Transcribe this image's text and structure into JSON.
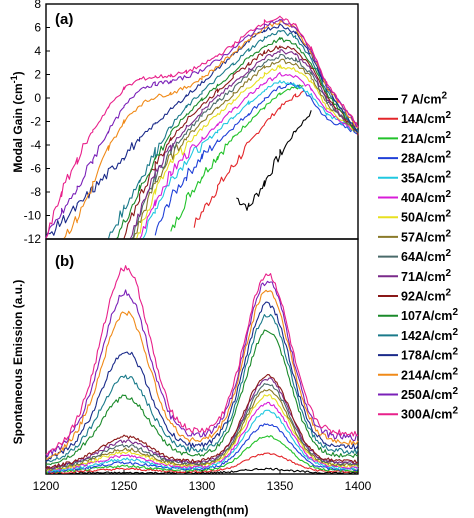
{
  "chart_data": [
    {
      "type": "line",
      "panel_tag": "(a)",
      "ylabel": "Modal Gain (cm",
      "ylabel_sup": "-1",
      "ylabel_end": ")",
      "xlabel": "",
      "xlim": [
        1200,
        1400
      ],
      "ylim": [
        -12,
        8
      ],
      "yticks": [
        -12,
        -10,
        -8,
        -6,
        -4,
        -2,
        0,
        2,
        4,
        6,
        8
      ],
      "legend": "right, outside plot",
      "series": [
        {
          "name": "7 A/cm2",
          "color": "#000000",
          "x": [
            1322,
            1330,
            1340,
            1350,
            1360,
            1370
          ],
          "y": [
            -8.5,
            -9.3,
            -7.2,
            -4.8,
            -2.8,
            -1.2
          ]
        },
        {
          "name": "14A/cm2",
          "color": "#e3262a",
          "x": [
            1295,
            1310,
            1320,
            1330,
            1340,
            1350,
            1360,
            1365
          ],
          "y": [
            -10.8,
            -7.6,
            -5.8,
            -3.9,
            -2.2,
            -0.8,
            0.2,
            0.5
          ]
        },
        {
          "name": "21A/cm2",
          "color": "#22c22a",
          "x": [
            1280,
            1290,
            1300,
            1310,
            1320,
            1330,
            1340,
            1350,
            1360,
            1365
          ],
          "y": [
            -11.5,
            -8.6,
            -6.6,
            -4.9,
            -3.4,
            -2.0,
            -0.8,
            0.3,
            0.9,
            1.0
          ]
        },
        {
          "name": "28A/cm2",
          "color": "#2040d8",
          "x": [
            1270,
            1280,
            1290,
            1300,
            1310,
            1320,
            1330,
            1340,
            1350,
            1358,
            1365,
            1380,
            1400
          ],
          "y": [
            -11.6,
            -8.5,
            -6.6,
            -5.0,
            -3.7,
            -2.5,
            -1.3,
            -0.1,
            0.9,
            1.2,
            0.7,
            -1.8,
            -3.0
          ]
        },
        {
          "name": "35A/cm2",
          "color": "#20c8e0",
          "x": [
            1262,
            1270,
            1280,
            1290,
            1300,
            1310,
            1320,
            1330,
            1340,
            1350,
            1360,
            1370,
            1380,
            1400
          ],
          "y": [
            -12,
            -9.4,
            -6.9,
            -5.3,
            -4.0,
            -2.8,
            -1.6,
            -0.4,
            0.7,
            1.4,
            1.1,
            0.3,
            -1.3,
            -3.0
          ]
        },
        {
          "name": "40A/cm2",
          "color": "#d81cd8",
          "x": [
            1260,
            1270,
            1280,
            1290,
            1300,
            1310,
            1320,
            1330,
            1340,
            1350,
            1360,
            1370,
            1380,
            1400
          ],
          "y": [
            -12,
            -8.8,
            -6.4,
            -4.8,
            -3.5,
            -2.2,
            -1.0,
            0.2,
            1.3,
            2.0,
            1.8,
            0.8,
            -1.0,
            -3.0
          ]
        },
        {
          "name": "50A/cm2",
          "color": "#e8e020",
          "x": [
            1258,
            1270,
            1280,
            1290,
            1300,
            1310,
            1320,
            1330,
            1340,
            1350,
            1360,
            1370,
            1380,
            1400
          ],
          "y": [
            -12,
            -7.9,
            -5.6,
            -4.0,
            -2.6,
            -1.4,
            -0.2,
            0.9,
            2.0,
            2.7,
            2.4,
            1.4,
            -0.8,
            -3.0
          ]
        },
        {
          "name": "57A/cm2",
          "color": "#8a7a2a",
          "x": [
            1256,
            1270,
            1280,
            1290,
            1300,
            1310,
            1320,
            1330,
            1340,
            1350,
            1360,
            1370,
            1380,
            1400
          ],
          "y": [
            -12,
            -7.2,
            -5.0,
            -3.4,
            -2.0,
            -0.8,
            0.3,
            1.5,
            2.6,
            3.2,
            2.9,
            1.8,
            -0.5,
            -3.0
          ]
        },
        {
          "name": "64A/cm2",
          "color": "#4a6a6a",
          "x": [
            1255,
            1270,
            1280,
            1290,
            1300,
            1310,
            1320,
            1330,
            1340,
            1350,
            1360,
            1370,
            1380,
            1400
          ],
          "y": [
            -12,
            -6.7,
            -4.5,
            -2.9,
            -1.5,
            -0.3,
            0.8,
            2.0,
            3.0,
            3.6,
            3.3,
            2.1,
            -0.3,
            -3.0
          ]
        },
        {
          "name": "71A/cm2",
          "color": "#7a2a8a",
          "x": [
            1254,
            1270,
            1280,
            1290,
            1300,
            1310,
            1320,
            1330,
            1340,
            1350,
            1360,
            1370,
            1380,
            1400
          ],
          "y": [
            -12,
            -6.3,
            -4.1,
            -2.5,
            -1.1,
            0.1,
            1.2,
            2.4,
            3.4,
            4.0,
            3.7,
            2.4,
            -0.1,
            -3.0
          ]
        },
        {
          "name": "92A/cm2",
          "color": "#8a1818",
          "x": [
            1250,
            1260,
            1270,
            1280,
            1290,
            1300,
            1310,
            1320,
            1330,
            1340,
            1350,
            1360,
            1370,
            1380,
            1400
          ],
          "y": [
            -12,
            -8.4,
            -5.7,
            -3.5,
            -1.9,
            -0.6,
            0.6,
            1.8,
            2.9,
            3.9,
            4.4,
            4.1,
            2.7,
            0.2,
            -3.0
          ]
        },
        {
          "name": "107A/cm2",
          "color": "#1a8a2a",
          "x": [
            1245,
            1260,
            1270,
            1280,
            1290,
            1300,
            1310,
            1320,
            1330,
            1340,
            1350,
            1360,
            1370,
            1380,
            1400
          ],
          "y": [
            -12,
            -7.8,
            -5.2,
            -3.0,
            -1.4,
            -0.1,
            1.0,
            2.2,
            3.4,
            4.4,
            5.0,
            4.6,
            3.0,
            0.4,
            -3.0
          ]
        },
        {
          "name": "142A/cm2",
          "color": "#1a7a8a",
          "x": [
            1240,
            1250,
            1260,
            1270,
            1280,
            1290,
            1300,
            1310,
            1320,
            1330,
            1340,
            1350,
            1360,
            1370,
            1380,
            1400
          ],
          "y": [
            -12,
            -9.4,
            -7.0,
            -4.6,
            -2.4,
            -0.8,
            0.5,
            1.7,
            2.9,
            4.1,
            5.1,
            5.7,
            5.2,
            3.4,
            0.6,
            -2.8
          ]
        },
        {
          "name": "178A/cm2",
          "color": "#1a2a8a",
          "x": [
            1200,
            1210,
            1220,
            1230,
            1240,
            1250,
            1260,
            1270,
            1280,
            1290,
            1300,
            1310,
            1320,
            1330,
            1340,
            1350,
            1360,
            1370,
            1380,
            1400
          ],
          "y": [
            -12,
            -10.5,
            -9.3,
            -7.8,
            -6.4,
            -4.9,
            -3.5,
            -2.2,
            -1.0,
            0.2,
            1.3,
            2.5,
            3.7,
            4.8,
            5.8,
            6.2,
            5.6,
            3.7,
            0.8,
            -2.8
          ]
        },
        {
          "name": "214A/cm2",
          "color": "#f08a18",
          "x": [
            1210,
            1220,
            1230,
            1240,
            1250,
            1260,
            1270,
            1280,
            1290,
            1300,
            1310,
            1320,
            1330,
            1340,
            1350,
            1360,
            1370,
            1380,
            1400
          ],
          "y": [
            -12,
            -10.3,
            -7.4,
            -4.3,
            -2.0,
            -0.6,
            0.1,
            0.4,
            0.9,
            1.7,
            2.7,
            3.8,
            5.0,
            6.0,
            6.5,
            5.9,
            3.9,
            1.0,
            -2.6
          ]
        },
        {
          "name": "250A/cm2",
          "color": "#7a20b8",
          "x": [
            1200,
            1210,
            1220,
            1230,
            1240,
            1250,
            1260,
            1270,
            1280,
            1290,
            1300,
            1310,
            1320,
            1330,
            1340,
            1350,
            1360,
            1370,
            1380,
            1400
          ],
          "y": [
            -12,
            -9.8,
            -7.8,
            -5.2,
            -2.8,
            -0.8,
            0.8,
            1.2,
            1.4,
            1.8,
            2.4,
            3.2,
            4.2,
            5.3,
            6.2,
            6.6,
            6.0,
            4.0,
            1.1,
            -2.5
          ]
        },
        {
          "name": "300A/cm2",
          "color": "#e8208a",
          "x": [
            1200,
            1210,
            1220,
            1230,
            1240,
            1250,
            1260,
            1270,
            1280,
            1290,
            1300,
            1310,
            1320,
            1330,
            1340,
            1350,
            1360,
            1370,
            1380,
            1400
          ],
          "y": [
            -12,
            -8.0,
            -5.2,
            -2.8,
            -0.8,
            0.8,
            1.6,
            1.8,
            1.9,
            2.2,
            2.8,
            3.6,
            4.5,
            5.6,
            6.5,
            6.8,
            6.2,
            4.2,
            1.2,
            -2.4
          ]
        }
      ]
    },
    {
      "type": "line",
      "panel_tag": "(b)",
      "ylabel": "Spontaneous Emission (a.u.)",
      "xlabel": "Wavelength(nm)",
      "xlim": [
        1200,
        1400
      ],
      "xticks": [
        1200,
        1250,
        1300,
        1350,
        1400
      ],
      "y_tick_labels": "none",
      "ylim": [
        0,
        100
      ],
      "legend": "shared with panel (a), right, outside plot",
      "peaks_description": "two emission peaks near 1250 nm and 1340 nm",
      "series": [
        {
          "name": "7 A/cm2",
          "color": "#000000",
          "bg": 0.5,
          "a1": 0.0,
          "a2": 1.8
        },
        {
          "name": "14A/cm2",
          "color": "#e3262a",
          "bg": 1.0,
          "a1": 1.2,
          "a2": 8.0
        },
        {
          "name": "21A/cm2",
          "color": "#22c22a",
          "bg": 1.5,
          "a1": 2.0,
          "a2": 15.0
        },
        {
          "name": "28A/cm2",
          "color": "#2040d8",
          "bg": 2.0,
          "a1": 3.0,
          "a2": 20.0
        },
        {
          "name": "35A/cm2",
          "color": "#20c8e0",
          "bg": 2.5,
          "a1": 4.0,
          "a2": 25.0
        },
        {
          "name": "40A/cm2",
          "color": "#d81cd8",
          "bg": 3.0,
          "a1": 5.0,
          "a2": 28.0
        },
        {
          "name": "50A/cm2",
          "color": "#e8e020",
          "bg": 3.5,
          "a1": 6.0,
          "a2": 31.0
        },
        {
          "name": "57A/cm2",
          "color": "#8a7a2a",
          "bg": 4.0,
          "a1": 7.0,
          "a2": 33.0
        },
        {
          "name": "64A/cm2",
          "color": "#4a6a6a",
          "bg": 4.5,
          "a1": 8.0,
          "a2": 35.0
        },
        {
          "name": "71A/cm2",
          "color": "#7a2a8a",
          "bg": 5.0,
          "a1": 9.5,
          "a2": 37.0
        },
        {
          "name": "92A/cm2",
          "color": "#8a1818",
          "bg": 5.5,
          "a1": 11.0,
          "a2": 38.0
        },
        {
          "name": "107A/cm2",
          "color": "#1a8a2a",
          "bg": 8.0,
          "a1": 26.0,
          "a2": 55.0
        },
        {
          "name": "142A/cm2",
          "color": "#1a7a8a",
          "bg": 10.0,
          "a1": 33.0,
          "a2": 60.0
        },
        {
          "name": "178A/cm2",
          "color": "#1a2a8a",
          "bg": 12.0,
          "a1": 42.0,
          "a2": 63.0
        },
        {
          "name": "214A/cm2",
          "color": "#f08a18",
          "bg": 14.0,
          "a1": 57.0,
          "a2": 67.0
        },
        {
          "name": "250A/cm2",
          "color": "#7a20b8",
          "bg": 16.0,
          "a1": 64.0,
          "a2": 69.0
        },
        {
          "name": "300A/cm2",
          "color": "#e8208a",
          "bg": 18.0,
          "a1": 73.0,
          "a2": 70.0
        }
      ]
    }
  ],
  "legend": {
    "entries": [
      {
        "label": "7 A/cm",
        "sup": "2",
        "color": "#000000"
      },
      {
        "label": "14A/cm",
        "sup": "2",
        "color": "#e3262a"
      },
      {
        "label": "21A/cm",
        "sup": "2",
        "color": "#22c22a"
      },
      {
        "label": "28A/cm",
        "sup": "2",
        "color": "#2040d8"
      },
      {
        "label": "35A/cm",
        "sup": "2",
        "color": "#20c8e0"
      },
      {
        "label": "40A/cm",
        "sup": "2",
        "color": "#d81cd8"
      },
      {
        "label": "50A/cm",
        "sup": "2",
        "color": "#e8e020"
      },
      {
        "label": "57A/cm",
        "sup": "2",
        "color": "#8a7a2a"
      },
      {
        "label": "64A/cm",
        "sup": "2",
        "color": "#4a6a6a"
      },
      {
        "label": "71A/cm",
        "sup": "2",
        "color": "#7a2a8a"
      },
      {
        "label": "92A/cm",
        "sup": "2",
        "color": "#8a1818"
      },
      {
        "label": "107A/cm",
        "sup": "2",
        "color": "#1a8a2a"
      },
      {
        "label": "142A/cm",
        "sup": "2",
        "color": "#1a7a8a"
      },
      {
        "label": "178A/cm",
        "sup": "2",
        "color": "#1a2a8a"
      },
      {
        "label": "214A/cm",
        "sup": "2",
        "color": "#f08a18"
      },
      {
        "label": "250A/cm",
        "sup": "2",
        "color": "#7a20b8"
      },
      {
        "label": "300A/cm",
        "sup": "2",
        "color": "#e8208a"
      }
    ]
  }
}
